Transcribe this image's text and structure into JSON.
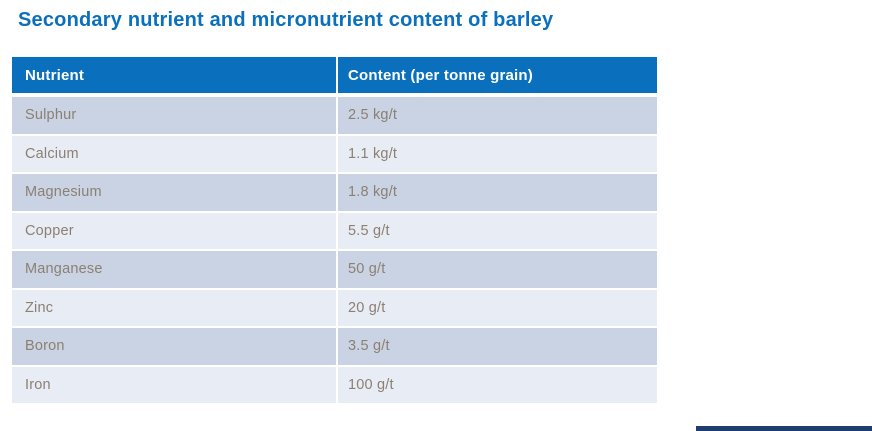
{
  "title": "Secondary nutrient and micronutrient content of barley",
  "colors": {
    "title": "#0a70be",
    "header_bg": "#0a70be",
    "header_text": "#ffffff",
    "row_dark": "#c9d3e3",
    "row_light": "#e8ecf4",
    "cell_text": "#8c8073",
    "accent_bar": "#1e3c6e",
    "background": "#ffffff"
  },
  "table": {
    "headers": [
      "Nutrient",
      "Content (per tonne grain)"
    ],
    "rows": [
      {
        "nutrient": "Sulphur",
        "content": "2.5 kg/t"
      },
      {
        "nutrient": "Calcium",
        "content": "1.1 kg/t"
      },
      {
        "nutrient": "Magnesium",
        "content": "1.8 kg/t"
      },
      {
        "nutrient": "Copper",
        "content": "5.5 g/t"
      },
      {
        "nutrient": "Manganese",
        "content": "50 g/t"
      },
      {
        "nutrient": "Zinc",
        "content": "20 g/t"
      },
      {
        "nutrient": "Boron",
        "content": "3.5 g/t"
      },
      {
        "nutrient": "Iron",
        "content": "100 g/t"
      }
    ]
  },
  "chart_data": {
    "type": "table",
    "title": "Secondary nutrient and micronutrient content of barley",
    "columns": [
      "Nutrient",
      "Content (per tonne grain)"
    ],
    "rows": [
      [
        "Sulphur",
        "2.5 kg/t"
      ],
      [
        "Calcium",
        "1.1 kg/t"
      ],
      [
        "Magnesium",
        "1.8 kg/t"
      ],
      [
        "Copper",
        "5.5 g/t"
      ],
      [
        "Manganese",
        "50 g/t"
      ],
      [
        "Zinc",
        "20 g/t"
      ],
      [
        "Boron",
        "3.5 g/t"
      ],
      [
        "Iron",
        "100 g/t"
      ]
    ],
    "values_numeric": [
      {
        "nutrient": "Sulphur",
        "value": 2.5,
        "unit": "kg/t"
      },
      {
        "nutrient": "Calcium",
        "value": 1.1,
        "unit": "kg/t"
      },
      {
        "nutrient": "Magnesium",
        "value": 1.8,
        "unit": "kg/t"
      },
      {
        "nutrient": "Copper",
        "value": 5.5,
        "unit": "g/t"
      },
      {
        "nutrient": "Manganese",
        "value": 50,
        "unit": "g/t"
      },
      {
        "nutrient": "Zinc",
        "value": 20,
        "unit": "g/t"
      },
      {
        "nutrient": "Boron",
        "value": 3.5,
        "unit": "g/t"
      },
      {
        "nutrient": "Iron",
        "value": 100,
        "unit": "g/t"
      }
    ]
  }
}
